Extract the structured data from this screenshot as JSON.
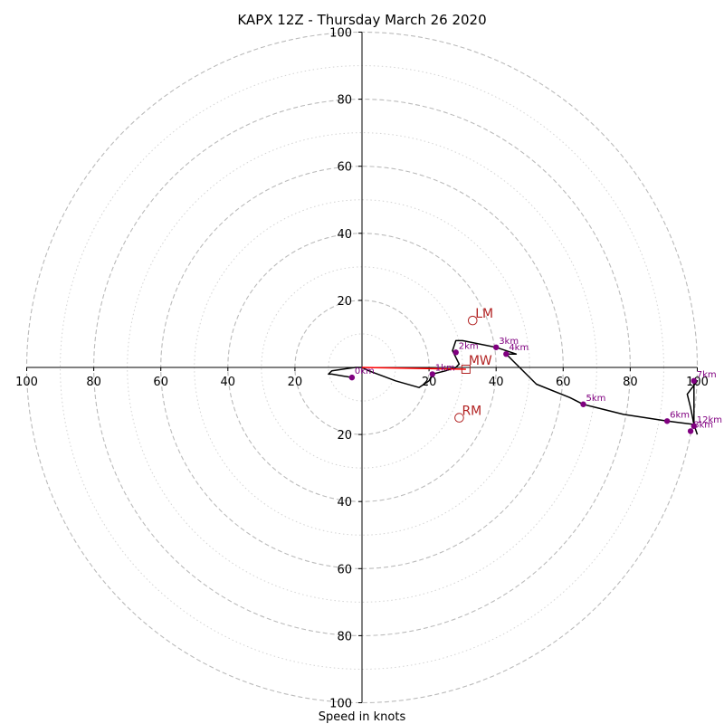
{
  "chart_data": {
    "type": "scatter",
    "title": "KAPX 12Z - Thursday March 26 2020",
    "xlabel": "Speed in knots",
    "axis_range": [
      -100,
      100
    ],
    "ring_labels": [
      "20",
      "40",
      "60",
      "80",
      "100"
    ],
    "rings_dashed": [
      20,
      40,
      60,
      80,
      100
    ],
    "rings_dotted": [
      10,
      30,
      50,
      70,
      90
    ],
    "grid": true,
    "colors": {
      "hodograph": "#000000",
      "height_points": "#800080",
      "storm_motion": "#b22222",
      "mean_wind_vector": "#ff0000",
      "grid": "#bbbbbb"
    },
    "hodograph": {
      "x": [
        -3,
        -9,
        -10,
        -9,
        -2,
        0,
        2,
        10,
        17,
        20,
        21,
        25,
        28,
        29,
        28,
        27,
        28,
        30,
        40,
        46,
        43,
        45,
        52,
        62,
        66,
        70,
        78,
        91,
        99,
        98,
        97,
        100,
        99,
        99,
        100
      ],
      "y": [
        -3,
        -2,
        -2,
        -1,
        0,
        0,
        -1,
        -4,
        -6,
        -4,
        -2,
        -1,
        0,
        1,
        3,
        5,
        8,
        8,
        6,
        4,
        4,
        2,
        -5,
        -9,
        -11,
        -12,
        -14,
        -16,
        -17,
        -12,
        -8,
        -4,
        -4,
        -17,
        -20
      ]
    },
    "height_points": {
      "labels": [
        "0km",
        "1km",
        "2km",
        "3km",
        "4km",
        "5km",
        "6km",
        "7km",
        "8km",
        "12km"
      ],
      "x": [
        -3,
        21,
        28,
        40,
        43,
        66,
        91,
        99,
        98,
        99
      ],
      "y": [
        -3,
        -2,
        4.5,
        6,
        4,
        -11,
        -16,
        -4,
        -19,
        -17.5
      ]
    },
    "storm_motion": [
      {
        "label": "LM",
        "x": 33,
        "y": 14,
        "marker": "circle"
      },
      {
        "label": "MW",
        "x": 31,
        "y": 0,
        "marker": "square"
      },
      {
        "label": "RM",
        "x": 29,
        "y": -15,
        "marker": "circle"
      }
    ],
    "mean_wind_vector": {
      "x": 31,
      "y": 0
    }
  }
}
